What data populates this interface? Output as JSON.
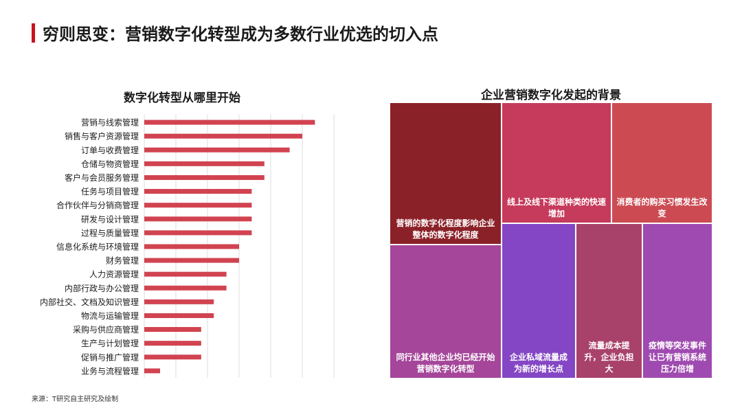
{
  "page_title": "穷则思变：营销数字化转型成为多数行业优选的切入点",
  "source_note": "来源：T研究自主研究及绘制",
  "colors": {
    "accent_red": "#c8141e",
    "bar_red": "#d14350"
  },
  "chart_data": [
    {
      "type": "bar",
      "orientation": "horizontal",
      "title": "数字化转型从哪里开始",
      "categories": [
        "营销与线索管理",
        "销售与客户资源管理",
        "订单与收费管理",
        "仓储与物资管理",
        "客户与会员服务管理",
        "任务与项目管理",
        "合作伙伴与分销商管理",
        "研发与设计管理",
        "过程与质量管理",
        "信息化系统与环境管理",
        "财务管理",
        "人力资源管理",
        "内部行政与办公管理",
        "内部社交、文档及知识管理",
        "物流与运输管理",
        "采购与供应商管理",
        "生产与计划管理",
        "促销与推广管理",
        "业务与流程管理"
      ],
      "values": [
        27,
        25,
        23,
        19,
        19,
        17,
        17,
        17,
        17,
        15,
        15,
        13,
        13,
        11,
        11,
        9,
        9,
        9,
        2.5
      ],
      "xlim": [
        0,
        30
      ],
      "grid": true
    },
    {
      "type": "treemap",
      "title": "企业营销数字化发起的背景",
      "items": [
        {
          "label": "营销的数字化程度影响企业整体的数字化程度",
          "color": "#8b2128"
        },
        {
          "label": "线上及线下渠道种类的快速增加",
          "color": "#c63a5b"
        },
        {
          "label": "消费者的购买习惯发生改变",
          "color": "#cc4b52"
        },
        {
          "label": "同行业其他企业均已经开始营销数字化转型",
          "color": "#a5469a"
        },
        {
          "label": "企业私域流量成为新的增长点",
          "color": "#8446c4"
        },
        {
          "label": "流量成本提升，企业负担大",
          "color": "#a8426b"
        },
        {
          "label": "疫情等突发事件让已有营销系统压力倍增",
          "color": "#9f4ab0"
        }
      ]
    }
  ]
}
